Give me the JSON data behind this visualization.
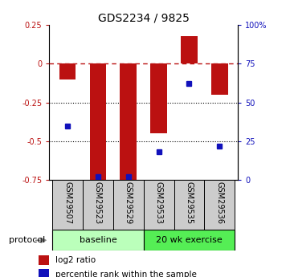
{
  "title": "GDS2234 / 9825",
  "samples": [
    "GSM29507",
    "GSM29523",
    "GSM29529",
    "GSM29533",
    "GSM29535",
    "GSM29536"
  ],
  "log2_ratio": [
    -0.1,
    -0.75,
    -0.75,
    -0.45,
    0.18,
    -0.2
  ],
  "percentile_rank": [
    35,
    2,
    2,
    18,
    62,
    22
  ],
  "ylim_left": [
    -0.75,
    0.25
  ],
  "ylim_right": [
    0,
    100
  ],
  "bar_color": "#bb1111",
  "dot_color": "#1111bb",
  "groups": [
    {
      "label": "baseline",
      "indices": [
        0,
        1,
        2
      ],
      "color": "#bbffbb"
    },
    {
      "label": "20 wk exercise",
      "indices": [
        3,
        4,
        5
      ],
      "color": "#55ee55"
    }
  ],
  "protocol_label": "protocol",
  "legend_log2": "log2 ratio",
  "legend_pct": "percentile rank within the sample",
  "yticks_left": [
    0.25,
    0.0,
    -0.25,
    -0.5,
    -0.75
  ],
  "ytick_labels_left": [
    "0.25",
    "0",
    "-0.25",
    "-0.5",
    "-0.75"
  ],
  "yticks_right": [
    100,
    75,
    50,
    25,
    0
  ],
  "ytick_labels_right": [
    "100%",
    "75",
    "50",
    "25",
    "0"
  ],
  "sample_box_color": "#cccccc",
  "background_color": "#ffffff"
}
